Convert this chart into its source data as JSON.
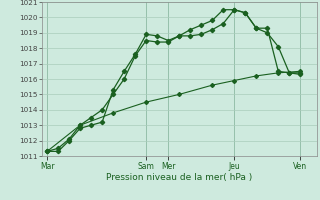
{
  "xlabel": "Pression niveau de la mer( hPa )",
  "ylim": [
    1011,
    1021
  ],
  "yticks": [
    1011,
    1012,
    1013,
    1014,
    1015,
    1016,
    1017,
    1018,
    1019,
    1020,
    1021
  ],
  "xtick_labels": [
    "Mar",
    "Sam",
    "Mer",
    "Jeu",
    "Ven"
  ],
  "xtick_positions": [
    0,
    9,
    11,
    17,
    23
  ],
  "xlim": [
    -0.5,
    24.5
  ],
  "background_color": "#ceeade",
  "grid_color": "#aaccbb",
  "line_color": "#1a6020",
  "series1_x": [
    0,
    1,
    2,
    3,
    4,
    5,
    6,
    7,
    8,
    9,
    10,
    11,
    12,
    13,
    14,
    15,
    16,
    17,
    18,
    19,
    20,
    21,
    22,
    23
  ],
  "series1_y": [
    1011.3,
    1011.3,
    1012.0,
    1012.8,
    1013.0,
    1013.2,
    1015.3,
    1016.5,
    1017.6,
    1018.9,
    1018.8,
    1018.5,
    1018.8,
    1018.8,
    1018.9,
    1019.2,
    1019.6,
    1020.5,
    1020.3,
    1019.3,
    1019.3,
    1016.5,
    1016.4,
    1016.3
  ],
  "series2_x": [
    0,
    1,
    2,
    3,
    4,
    5,
    6,
    7,
    8,
    9,
    10,
    11,
    12,
    13,
    14,
    15,
    16,
    17,
    18,
    19,
    20,
    21,
    22,
    23
  ],
  "series2_y": [
    1011.3,
    1011.5,
    1012.1,
    1013.0,
    1013.5,
    1014.0,
    1015.0,
    1016.0,
    1017.5,
    1018.5,
    1018.4,
    1018.4,
    1018.8,
    1019.2,
    1019.5,
    1019.8,
    1020.5,
    1020.5,
    1020.3,
    1019.3,
    1019.0,
    1018.1,
    1016.4,
    1016.4
  ],
  "series3_x": [
    0,
    3,
    6,
    9,
    12,
    15,
    17,
    19,
    21,
    23
  ],
  "series3_y": [
    1011.3,
    1013.0,
    1013.8,
    1014.5,
    1015.0,
    1015.6,
    1015.9,
    1016.2,
    1016.4,
    1016.5
  ],
  "ylabel_color": "#1a6020",
  "tick_label_color": "#444444",
  "xtick_color": "#1a6020"
}
